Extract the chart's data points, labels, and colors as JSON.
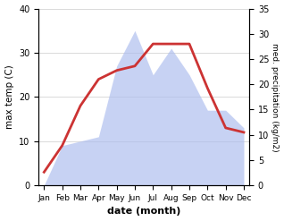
{
  "months": [
    "Jan",
    "Feb",
    "Mar",
    "Apr",
    "May",
    "Jun",
    "Jul",
    "Aug",
    "Sep",
    "Oct",
    "Nov",
    "Dec"
  ],
  "max_temp": [
    3,
    9,
    18,
    24,
    26,
    27,
    32,
    32,
    32,
    22,
    13,
    12
  ],
  "precipitation_left_scale": [
    0,
    9,
    10,
    11,
    27,
    35,
    25,
    31,
    25,
    17,
    17,
    13
  ],
  "temp_color": "#cc3333",
  "precip_color": "#aabbee",
  "precip_alpha": 0.65,
  "temp_ylim": [
    0,
    40
  ],
  "precip_ylim": [
    0,
    35
  ],
  "left_ylim": [
    0,
    40
  ],
  "temp_yticks": [
    0,
    10,
    20,
    30,
    40
  ],
  "precip_yticks": [
    0,
    5,
    10,
    15,
    20,
    25,
    30,
    35
  ],
  "ylabel_left": "max temp (C)",
  "ylabel_right": "med. precipitation (kg/m2)",
  "xlabel": "date (month)",
  "background_color": "#ffffff",
  "line_width": 2.0
}
